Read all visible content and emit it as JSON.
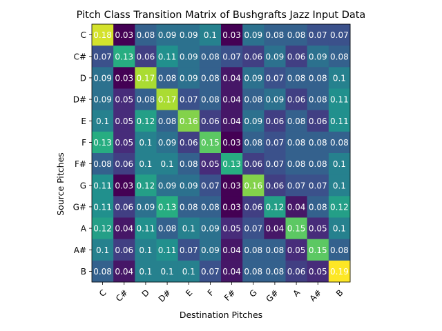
{
  "chart_data": {
    "type": "heatmap",
    "title": "Pitch Class Transition Matrix of Bushgrafts Jazz Input Data",
    "xlabel": "Destination Pitches",
    "ylabel": "Source Pitches",
    "x_categories": [
      "C",
      "C#",
      "D",
      "D#",
      "E",
      "F",
      "F#",
      "G",
      "G#",
      "A",
      "A#",
      "B"
    ],
    "y_categories": [
      "C",
      "C#",
      "D",
      "D#",
      "E",
      "F",
      "F#",
      "G",
      "G#",
      "A",
      "A#",
      "B"
    ],
    "colormap": "viridis",
    "value_range": [
      0.03,
      0.19
    ],
    "grid": false,
    "values": [
      [
        0.18,
        0.03,
        0.08,
        0.09,
        0.09,
        0.1,
        0.03,
        0.09,
        0.08,
        0.08,
        0.07,
        0.07
      ],
      [
        0.07,
        0.13,
        0.06,
        0.11,
        0.09,
        0.08,
        0.07,
        0.06,
        0.09,
        0.06,
        0.09,
        0.08
      ],
      [
        0.09,
        0.03,
        0.17,
        0.08,
        0.09,
        0.08,
        0.04,
        0.09,
        0.07,
        0.08,
        0.08,
        0.1
      ],
      [
        0.09,
        0.05,
        0.08,
        0.17,
        0.07,
        0.08,
        0.04,
        0.08,
        0.09,
        0.06,
        0.08,
        0.11
      ],
      [
        0.1,
        0.05,
        0.12,
        0.08,
        0.16,
        0.06,
        0.04,
        0.09,
        0.06,
        0.08,
        0.06,
        0.11
      ],
      [
        0.13,
        0.05,
        0.1,
        0.09,
        0.06,
        0.15,
        0.03,
        0.08,
        0.07,
        0.08,
        0.08,
        0.08
      ],
      [
        0.08,
        0.06,
        0.1,
        0.1,
        0.08,
        0.05,
        0.13,
        0.06,
        0.07,
        0.08,
        0.08,
        0.1
      ],
      [
        0.11,
        0.03,
        0.12,
        0.09,
        0.09,
        0.07,
        0.03,
        0.16,
        0.06,
        0.07,
        0.07,
        0.1
      ],
      [
        0.11,
        0.06,
        0.09,
        0.13,
        0.08,
        0.08,
        0.03,
        0.06,
        0.12,
        0.04,
        0.08,
        0.12
      ],
      [
        0.12,
        0.04,
        0.11,
        0.08,
        0.1,
        0.09,
        0.05,
        0.07,
        0.04,
        0.15,
        0.05,
        0.1
      ],
      [
        0.1,
        0.06,
        0.1,
        0.11,
        0.07,
        0.09,
        0.04,
        0.08,
        0.08,
        0.05,
        0.15,
        0.08
      ],
      [
        0.08,
        0.04,
        0.1,
        0.1,
        0.1,
        0.07,
        0.04,
        0.08,
        0.08,
        0.06,
        0.05,
        0.19
      ]
    ]
  }
}
